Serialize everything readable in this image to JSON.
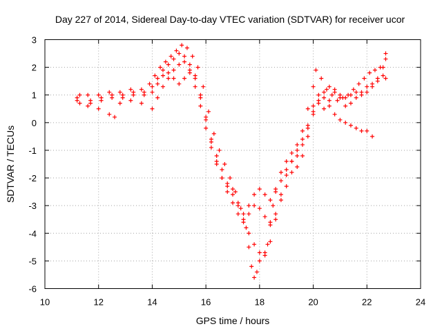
{
  "chart_data": {
    "type": "scatter",
    "title": "Day 227 of 2014, Sidereal Day-to-day VTEC variation (SDTVAR) for receiver ucor",
    "xlabel": "GPS time / hours",
    "ylabel": "SDTVAR / TECUs",
    "xlim": [
      10,
      24
    ],
    "ylim": [
      -6,
      3
    ],
    "xticks": [
      10,
      12,
      14,
      16,
      18,
      20,
      22,
      24
    ],
    "yticks": [
      -6,
      -5,
      -4,
      -3,
      -2,
      -1,
      0,
      1,
      2,
      3
    ],
    "grid": true,
    "marker": "plus",
    "color": "#ff0000",
    "series": [
      {
        "name": "series-1",
        "points": [
          [
            11.2,
            0.9
          ],
          [
            11.6,
            1.0
          ],
          [
            12.0,
            1.0
          ],
          [
            12.4,
            1.1
          ],
          [
            12.8,
            1.1
          ],
          [
            13.2,
            1.2
          ],
          [
            13.6,
            1.2
          ],
          [
            13.9,
            1.4
          ],
          [
            14.1,
            1.7
          ],
          [
            14.3,
            2.0
          ],
          [
            14.5,
            2.2
          ],
          [
            14.7,
            2.4
          ],
          [
            14.9,
            2.6
          ],
          [
            15.1,
            2.8
          ],
          [
            15.3,
            2.7
          ],
          [
            15.5,
            2.4
          ],
          [
            15.7,
            2.0
          ],
          [
            15.9,
            1.3
          ],
          [
            16.1,
            0.4
          ],
          [
            16.3,
            -0.4
          ],
          [
            16.5,
            -1.0
          ],
          [
            16.7,
            -1.5
          ],
          [
            16.9,
            -2.0
          ],
          [
            17.1,
            -2.5
          ],
          [
            17.3,
            -3.1
          ],
          [
            17.5,
            -3.8
          ],
          [
            17.6,
            -4.5
          ],
          [
            17.7,
            -5.2
          ],
          [
            17.8,
            -5.6
          ],
          [
            17.9,
            -5.4
          ],
          [
            18.0,
            -5.0
          ],
          [
            18.2,
            -4.8
          ],
          [
            18.3,
            -4.4
          ],
          [
            18.4,
            -3.7
          ],
          [
            18.5,
            -3.0
          ],
          [
            18.6,
            -2.4
          ],
          [
            18.8,
            -1.8
          ],
          [
            19.0,
            -1.4
          ],
          [
            19.2,
            -1.1
          ],
          [
            19.4,
            -0.8
          ],
          [
            19.6,
            -0.3
          ],
          [
            19.8,
            0.5
          ],
          [
            20.0,
            1.3
          ],
          [
            20.1,
            1.9
          ],
          [
            20.3,
            1.6
          ],
          [
            20.5,
            1.2
          ],
          [
            20.7,
            1.0
          ],
          [
            20.9,
            0.8
          ],
          [
            21.1,
            0.9
          ],
          [
            21.3,
            1.0
          ],
          [
            21.5,
            1.2
          ],
          [
            21.7,
            1.4
          ],
          [
            21.9,
            1.6
          ],
          [
            22.1,
            1.8
          ],
          [
            22.3,
            1.9
          ],
          [
            22.5,
            2.0
          ],
          [
            22.7,
            2.5
          ]
        ]
      },
      {
        "name": "series-2",
        "points": [
          [
            11.3,
            1.0
          ],
          [
            11.7,
            0.7
          ],
          [
            12.1,
            0.8
          ],
          [
            12.5,
            0.9
          ],
          [
            12.9,
            0.9
          ],
          [
            13.3,
            1.0
          ],
          [
            13.7,
            1.1
          ],
          [
            14.0,
            1.3
          ],
          [
            14.2,
            1.6
          ],
          [
            14.4,
            1.9
          ],
          [
            14.6,
            2.1
          ],
          [
            14.8,
            2.3
          ],
          [
            15.0,
            2.5
          ],
          [
            15.2,
            2.4
          ],
          [
            15.4,
            2.1
          ],
          [
            15.6,
            1.6
          ],
          [
            15.8,
            0.9
          ],
          [
            16.0,
            0.1
          ],
          [
            16.2,
            -0.6
          ],
          [
            16.4,
            -1.2
          ],
          [
            16.6,
            -1.7
          ],
          [
            16.8,
            -2.2
          ],
          [
            17.0,
            -2.6
          ],
          [
            17.2,
            -3.0
          ],
          [
            17.4,
            -3.3
          ],
          [
            17.6,
            -3.0
          ],
          [
            17.8,
            -2.6
          ],
          [
            18.0,
            -2.4
          ],
          [
            18.2,
            -2.6
          ],
          [
            18.4,
            -2.8
          ],
          [
            18.6,
            -2.5
          ],
          [
            18.8,
            -2.1
          ],
          [
            19.0,
            -1.7
          ],
          [
            19.2,
            -1.4
          ],
          [
            19.4,
            -1.2
          ],
          [
            19.6,
            -0.8
          ],
          [
            19.8,
            -0.2
          ],
          [
            20.0,
            0.6
          ],
          [
            20.2,
            1.0
          ],
          [
            20.4,
            0.9
          ],
          [
            20.6,
            0.6
          ],
          [
            20.8,
            0.3
          ],
          [
            21.0,
            0.1
          ],
          [
            21.2,
            0.0
          ],
          [
            21.4,
            -0.1
          ],
          [
            21.6,
            -0.2
          ],
          [
            21.8,
            -0.3
          ],
          [
            22.0,
            -0.3
          ],
          [
            22.2,
            -0.5
          ]
        ]
      },
      {
        "name": "series-3",
        "points": [
          [
            11.2,
            0.8
          ],
          [
            11.6,
            0.6
          ],
          [
            12.0,
            0.5
          ],
          [
            12.4,
            0.3
          ],
          [
            12.6,
            0.2
          ],
          [
            12.8,
            0.7
          ],
          [
            13.2,
            0.8
          ],
          [
            13.6,
            0.7
          ],
          [
            14.0,
            0.5
          ],
          [
            14.2,
            0.9
          ],
          [
            14.4,
            1.3
          ],
          [
            14.6,
            1.6
          ],
          [
            14.8,
            1.9
          ],
          [
            15.0,
            2.1
          ],
          [
            15.2,
            2.2
          ],
          [
            15.4,
            1.8
          ],
          [
            15.6,
            1.3
          ],
          [
            15.8,
            0.6
          ],
          [
            16.0,
            -0.2
          ],
          [
            16.2,
            -0.9
          ],
          [
            16.4,
            -1.5
          ],
          [
            16.6,
            -2.0
          ],
          [
            16.8,
            -2.5
          ],
          [
            17.0,
            -2.9
          ],
          [
            17.2,
            -3.3
          ],
          [
            17.4,
            -3.5
          ],
          [
            17.6,
            -3.3
          ],
          [
            17.8,
            -3.0
          ],
          [
            18.0,
            -3.1
          ],
          [
            18.2,
            -3.4
          ],
          [
            18.4,
            -3.6
          ],
          [
            18.6,
            -3.3
          ],
          [
            18.8,
            -2.8
          ],
          [
            19.0,
            -2.3
          ],
          [
            19.2,
            -1.8
          ],
          [
            19.4,
            -1.6
          ],
          [
            19.6,
            -1.2
          ],
          [
            19.8,
            -0.5
          ],
          [
            20.0,
            0.3
          ],
          [
            20.2,
            0.8
          ],
          [
            20.4,
            1.1
          ],
          [
            20.6,
            1.3
          ],
          [
            20.8,
            1.2
          ],
          [
            21.0,
            0.9
          ],
          [
            21.2,
            0.6
          ],
          [
            21.4,
            0.7
          ],
          [
            21.6,
            0.9
          ],
          [
            21.8,
            1.1
          ],
          [
            22.0,
            1.3
          ],
          [
            22.2,
            1.4
          ],
          [
            22.4,
            1.5
          ],
          [
            22.6,
            1.7
          ],
          [
            22.7,
            1.6
          ]
        ]
      },
      {
        "name": "series-4",
        "points": [
          [
            11.3,
            0.7
          ],
          [
            11.7,
            0.8
          ],
          [
            12.1,
            0.9
          ],
          [
            12.5,
            1.0
          ],
          [
            12.9,
            1.0
          ],
          [
            13.3,
            1.1
          ],
          [
            13.7,
            1.0
          ],
          [
            14.0,
            1.1
          ],
          [
            14.2,
            1.4
          ],
          [
            14.4,
            1.7
          ],
          [
            14.6,
            1.8
          ],
          [
            14.8,
            1.6
          ],
          [
            15.0,
            1.4
          ],
          [
            15.2,
            1.6
          ],
          [
            15.4,
            1.9
          ],
          [
            15.6,
            1.7
          ],
          [
            15.8,
            1.0
          ],
          [
            16.0,
            0.2
          ],
          [
            16.2,
            -0.7
          ],
          [
            16.4,
            -1.4
          ],
          [
            16.6,
            -2.0
          ],
          [
            16.8,
            -2.3
          ],
          [
            17.0,
            -2.4
          ],
          [
            17.2,
            -2.9
          ],
          [
            17.4,
            -3.6
          ],
          [
            17.6,
            -4.0
          ],
          [
            17.8,
            -4.4
          ],
          [
            18.0,
            -4.7
          ],
          [
            18.2,
            -4.7
          ],
          [
            18.4,
            -4.3
          ],
          [
            18.6,
            -3.5
          ],
          [
            18.8,
            -2.6
          ],
          [
            19.0,
            -1.9
          ],
          [
            19.2,
            -1.4
          ],
          [
            19.4,
            -1.0
          ],
          [
            19.6,
            -0.6
          ],
          [
            19.8,
            -0.1
          ],
          [
            20.0,
            0.4
          ],
          [
            20.2,
            0.7
          ],
          [
            20.4,
            0.5
          ],
          [
            20.6,
            0.8
          ],
          [
            20.8,
            1.1
          ],
          [
            21.0,
            1.0
          ],
          [
            21.2,
            0.9
          ],
          [
            21.4,
            1.0
          ],
          [
            21.6,
            1.1
          ],
          [
            21.8,
            1.0
          ],
          [
            22.0,
            1.1
          ],
          [
            22.2,
            1.3
          ],
          [
            22.4,
            1.6
          ],
          [
            22.6,
            2.0
          ],
          [
            22.7,
            2.3
          ]
        ]
      }
    ]
  }
}
